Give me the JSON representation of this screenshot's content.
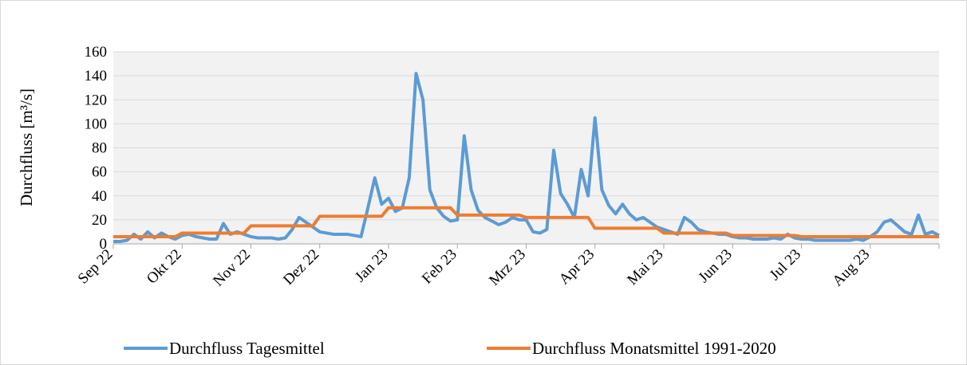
{
  "chart_data": {
    "type": "line",
    "y_label": "Durchfluss [m³/s]",
    "categories": [
      "Sep 22",
      null,
      null,
      null,
      null,
      null,
      null,
      null,
      null,
      null,
      "Okt 22",
      null,
      null,
      null,
      null,
      null,
      null,
      null,
      null,
      null,
      "Nov 22",
      null,
      null,
      null,
      null,
      null,
      null,
      null,
      null,
      null,
      "Dez 22",
      null,
      null,
      null,
      null,
      null,
      null,
      null,
      null,
      null,
      "Jan 23",
      null,
      null,
      null,
      null,
      null,
      null,
      null,
      null,
      null,
      "Feb 23",
      null,
      null,
      null,
      null,
      null,
      null,
      null,
      null,
      null,
      "Mrz 23",
      null,
      null,
      null,
      null,
      null,
      null,
      null,
      null,
      null,
      "Apr 23",
      null,
      null,
      null,
      null,
      null,
      null,
      null,
      null,
      null,
      "Mai 23",
      null,
      null,
      null,
      null,
      null,
      null,
      null,
      null,
      null,
      "Jun 23",
      null,
      null,
      null,
      null,
      null,
      null,
      null,
      null,
      null,
      "Jul 23",
      null,
      null,
      null,
      null,
      null,
      null,
      null,
      null,
      null,
      "Aug 23",
      null,
      null,
      null,
      null,
      null,
      null,
      null,
      null,
      null,
      null
    ],
    "series": [
      {
        "name": "Durchfluss Tagesmittel",
        "color": "#5b9bd5",
        "values": [
          2,
          2,
          3,
          8,
          4,
          10,
          5,
          9,
          6,
          4,
          7,
          8,
          6,
          5,
          4,
          4,
          17,
          8,
          10,
          8,
          6,
          5,
          5,
          5,
          4,
          5,
          12,
          22,
          18,
          14,
          10,
          9,
          8,
          8,
          8,
          7,
          6,
          30,
          55,
          33,
          38,
          27,
          30,
          55,
          142,
          120,
          45,
          30,
          23,
          19,
          20,
          90,
          45,
          28,
          22,
          19,
          16,
          18,
          22,
          20,
          20,
          10,
          9,
          12,
          78,
          42,
          33,
          22,
          62,
          40,
          105,
          45,
          32,
          25,
          33,
          25,
          20,
          22,
          18,
          14,
          12,
          10,
          8,
          22,
          18,
          12,
          10,
          9,
          8,
          8,
          6,
          5,
          5,
          4,
          4,
          4,
          5,
          4,
          8,
          5,
          4,
          4,
          3,
          3,
          3,
          3,
          3,
          3,
          4,
          3,
          6,
          10,
          18,
          20,
          15,
          10,
          8,
          24,
          8,
          10,
          7
        ]
      },
      {
        "name": "Durchfluss Monatsmittel 1991-2020",
        "color": "#ed7d31",
        "values": [
          6,
          6,
          6,
          6,
          6,
          6,
          6,
          6,
          6,
          6,
          9,
          9,
          9,
          9,
          9,
          9,
          9,
          9,
          9,
          9,
          15,
          15,
          15,
          15,
          15,
          15,
          15,
          15,
          15,
          15,
          23,
          23,
          23,
          23,
          23,
          23,
          23,
          23,
          23,
          23,
          30,
          30,
          30,
          30,
          30,
          30,
          30,
          30,
          30,
          30,
          24,
          24,
          24,
          24,
          24,
          24,
          24,
          24,
          24,
          24,
          22,
          22,
          22,
          22,
          22,
          22,
          22,
          22,
          22,
          22,
          13,
          13,
          13,
          13,
          13,
          13,
          13,
          13,
          13,
          13,
          9,
          9,
          9,
          9,
          9,
          9,
          9,
          9,
          9,
          9,
          7,
          7,
          7,
          7,
          7,
          7,
          7,
          7,
          7,
          7,
          6,
          6,
          6,
          6,
          6,
          6,
          6,
          6,
          6,
          6,
          6,
          6,
          6,
          6,
          6,
          6,
          6,
          6,
          6,
          6,
          6
        ]
      }
    ],
    "ylim": [
      0,
      160
    ],
    "yticks": [
      0,
      20,
      40,
      60,
      80,
      100,
      120,
      140,
      160
    ],
    "grid": true,
    "legend": "bottom"
  }
}
